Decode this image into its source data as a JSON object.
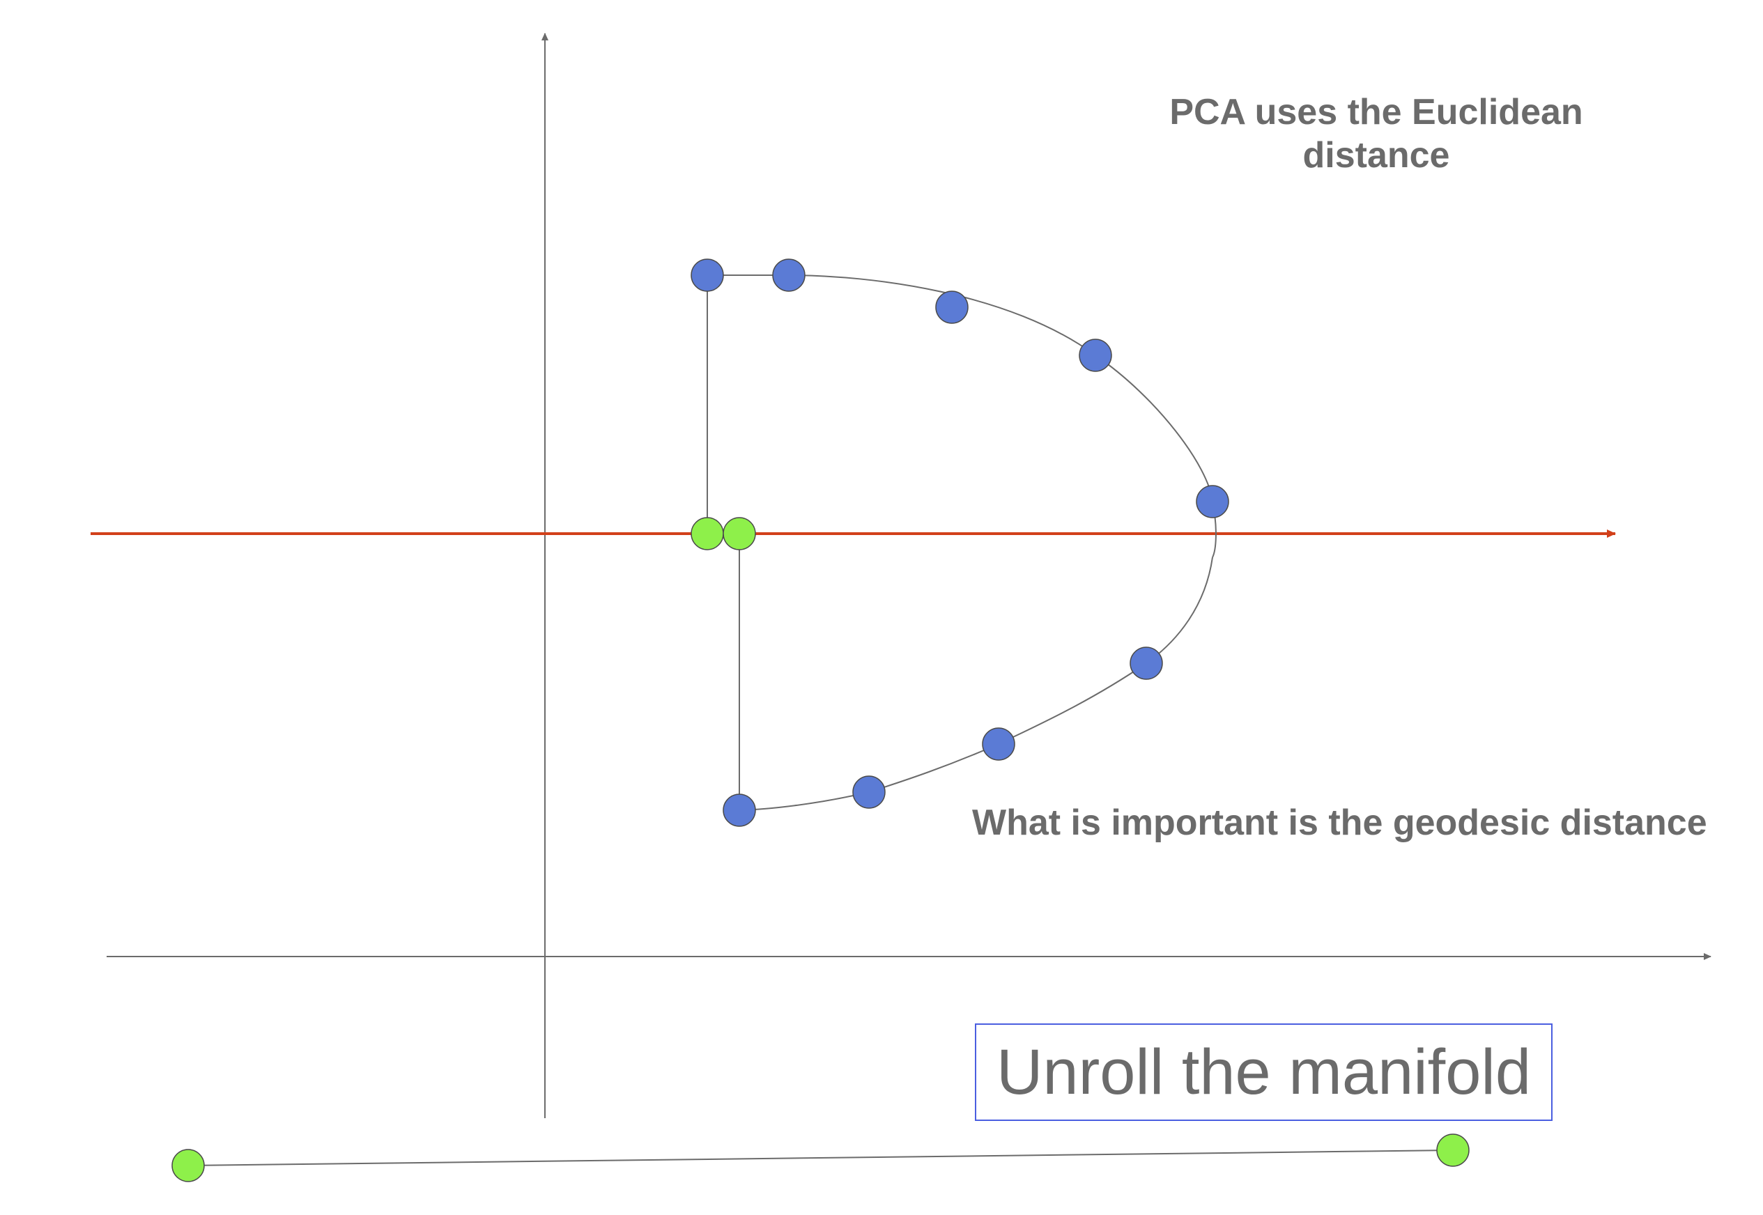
{
  "texts": {
    "pca_line1": "PCA uses the Euclidean",
    "pca_line2": "distance",
    "geodesic": "What is important is the geodesic distance",
    "unroll": "Unroll the manifold"
  },
  "colors": {
    "axis": "#6b6b6b",
    "projection_line": "#d2401a",
    "manifold_point": "#5b7bd5",
    "highlight_point": "#8ef04a",
    "point_stroke": "#4a4a4a",
    "text": "#6b6b6b",
    "box_border": "#4a5ee0"
  },
  "elements": {
    "x_axis": "x-axis-arrow",
    "y_axis": "y-axis-arrow",
    "projection_axis": "principal-component-arrow",
    "manifold": "manifold-curve",
    "unrolled_line": "unrolled-manifold-line"
  }
}
